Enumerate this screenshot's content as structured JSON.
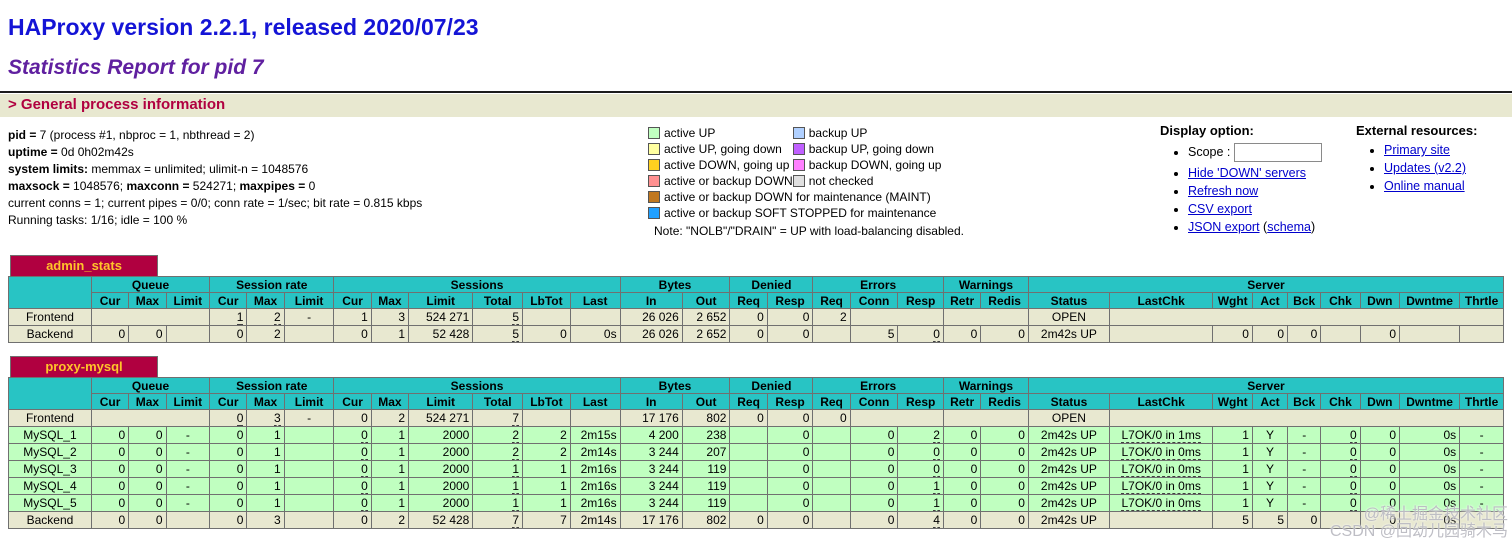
{
  "header": {
    "title": "HAProxy version 2.2.1, released 2020/07/23",
    "subtitle": "Statistics Report for pid 7",
    "section": "> General process information"
  },
  "process_info": [
    [
      {
        "b": true,
        "t": "pid = "
      },
      {
        "t": "7 (process #1, nbproc = 1, nbthread = 2)"
      }
    ],
    [
      {
        "b": true,
        "t": "uptime = "
      },
      {
        "t": "0d 0h02m42s"
      }
    ],
    [
      {
        "b": true,
        "t": "system limits:"
      },
      {
        "t": " memmax = unlimited; ulimit-n = 1048576"
      }
    ],
    [
      {
        "b": true,
        "t": "maxsock = "
      },
      {
        "t": "1048576; "
      },
      {
        "b": true,
        "t": "maxconn = "
      },
      {
        "t": "524271; "
      },
      {
        "b": true,
        "t": "maxpipes = "
      },
      {
        "t": "0"
      }
    ],
    [
      {
        "t": "current conns = 1; current pipes = 0/0; conn rate = 1/sec; bit rate = 0.815 kbps"
      }
    ],
    [
      {
        "t": "Running tasks: 1/16; idle = 100 %"
      }
    ]
  ],
  "legend": {
    "left": [
      {
        "label": "active UP",
        "color": "#c0ffc0"
      },
      {
        "label": "active UP, going down",
        "color": "#ffffa0"
      },
      {
        "label": "active DOWN, going up",
        "color": "#ffd020"
      },
      {
        "label": "active or backup DOWN",
        "color": "#ff9090"
      }
    ],
    "right": [
      {
        "label": "backup UP",
        "color": "#b0d0ff"
      },
      {
        "label": "backup UP, going down",
        "color": "#c060ff"
      },
      {
        "label": "backup DOWN, going up",
        "color": "#ff80ff"
      },
      {
        "label": "not checked",
        "color": "#e0e0e0"
      }
    ],
    "full": [
      {
        "label": "active or backup DOWN for maintenance (MAINT)",
        "color": "#c07820"
      },
      {
        "label": "active or backup SOFT STOPPED for maintenance",
        "color": "#20a0ff"
      }
    ],
    "note": "Note: \"NOLB\"/\"DRAIN\" = UP with load-balancing disabled."
  },
  "display_options": {
    "heading": "Display option:",
    "scope_label": "Scope :",
    "scope_value": "",
    "items": [
      {
        "parts": [
          {
            "t": "Hide 'DOWN' servers",
            "link": true
          }
        ]
      },
      {
        "parts": [
          {
            "t": "Refresh now",
            "link": true
          }
        ]
      },
      {
        "parts": [
          {
            "t": "CSV export",
            "link": true
          }
        ]
      },
      {
        "parts": [
          {
            "t": "JSON export",
            "link": true
          },
          {
            "t": " (",
            "link": false
          },
          {
            "t": "schema",
            "link": true
          },
          {
            "t": ")",
            "link": false
          }
        ]
      }
    ]
  },
  "external_resources": {
    "heading": "External resources:",
    "links": [
      "Primary site",
      "Updates (v2.2)",
      "Online manual"
    ]
  },
  "table_structure": {
    "widths": [
      80,
      36,
      36,
      42,
      36,
      36,
      48,
      36,
      36,
      62,
      48,
      46,
      48,
      60,
      46,
      36,
      44,
      36,
      46,
      44,
      36,
      46,
      78,
      100,
      38,
      34,
      32,
      38,
      38,
      58,
      42
    ],
    "groups": [
      {
        "label": "Queue",
        "cols": 3
      },
      {
        "label": "Session rate",
        "cols": 3
      },
      {
        "label": "Sessions",
        "cols": 6
      },
      {
        "label": "Bytes",
        "cols": 2
      },
      {
        "label": "Denied",
        "cols": 2
      },
      {
        "label": "Errors",
        "cols": 3
      },
      {
        "label": "Warnings",
        "cols": 2
      },
      {
        "label": "Server",
        "cols": 9
      }
    ],
    "columns": [
      "Cur",
      "Max",
      "Limit",
      "Cur",
      "Max",
      "Limit",
      "Cur",
      "Max",
      "Limit",
      "Total",
      "LbTot",
      "Last",
      "In",
      "Out",
      "Req",
      "Resp",
      "Req",
      "Conn",
      "Resp",
      "Retr",
      "Redis",
      "Status",
      "LastChk",
      "Wght",
      "Act",
      "Bck",
      "Chk",
      "Dwn",
      "Dwntme",
      "Thrtle"
    ]
  },
  "stats_tables": [
    {
      "title": "admin_stats",
      "rows": [
        {
          "name": "Frontend",
          "type": "frontend",
          "cells": [
            {
              "s": 3
            },
            {
              "v": "1",
              "u": 1
            },
            {
              "v": "2",
              "u": 1
            },
            {
              "v": "-",
              "a": "c"
            },
            "1",
            "3",
            "524 271",
            {
              "v": "5",
              "u": 1
            },
            "",
            "",
            "26 026",
            "2 652",
            "0",
            "0",
            "2",
            {
              "s": 2
            },
            {
              "s": 2
            },
            {
              "v": "OPEN",
              "a": "c"
            },
            {
              "s": 8
            }
          ]
        },
        {
          "name": "Backend",
          "type": "backend",
          "cells": [
            "0",
            "0",
            "",
            "0",
            "2",
            "",
            "0",
            "1",
            "52 428",
            {
              "v": "5",
              "u": 1
            },
            "0",
            "0s",
            "26 026",
            "2 652",
            "0",
            "0",
            "",
            "5",
            {
              "v": "0",
              "u": 1
            },
            "0",
            "0",
            {
              "v": "2m42s UP",
              "a": "c"
            },
            "",
            "0",
            "0",
            "0",
            "",
            "0",
            "",
            ""
          ]
        }
      ]
    },
    {
      "title": "proxy-mysql",
      "rows": [
        {
          "name": "Frontend",
          "type": "frontend",
          "cells": [
            {
              "s": 3
            },
            {
              "v": "0",
              "u": 1
            },
            {
              "v": "3",
              "u": 1
            },
            {
              "v": "-",
              "a": "c"
            },
            "0",
            "2",
            "524 271",
            {
              "v": "7",
              "u": 1
            },
            "",
            "",
            "17 176",
            "802",
            "0",
            "0",
            "0",
            {
              "s": 2
            },
            {
              "s": 2
            },
            {
              "v": "OPEN",
              "a": "c"
            },
            {
              "s": 8
            }
          ]
        },
        {
          "name": "MySQL_1",
          "type": "server-up",
          "cells": [
            "0",
            "0",
            {
              "v": "-",
              "a": "c"
            },
            "0",
            "1",
            "",
            {
              "v": "0",
              "u": 1
            },
            "1",
            "2000",
            {
              "v": "2",
              "u": 1
            },
            "2",
            "2m15s",
            "4 200",
            "238",
            "",
            "0",
            "",
            "0",
            {
              "v": "2",
              "u": 1
            },
            "0",
            "0",
            {
              "v": "2m42s UP",
              "a": "c"
            },
            {
              "v": "L7OK/0 in 1ms",
              "a": "c",
              "u": 1
            },
            "1",
            {
              "v": "Y",
              "a": "c"
            },
            {
              "v": "-",
              "a": "c"
            },
            {
              "v": "0",
              "u": 1
            },
            "0",
            "0s",
            {
              "v": "-",
              "a": "c"
            }
          ]
        },
        {
          "name": "MySQL_2",
          "type": "server-up",
          "cells": [
            "0",
            "0",
            {
              "v": "-",
              "a": "c"
            },
            "0",
            "1",
            "",
            {
              "v": "0",
              "u": 1
            },
            "1",
            "2000",
            {
              "v": "2",
              "u": 1
            },
            "2",
            "2m14s",
            "3 244",
            "207",
            "",
            "0",
            "",
            "0",
            {
              "v": "0",
              "u": 1
            },
            "0",
            "0",
            {
              "v": "2m42s UP",
              "a": "c"
            },
            {
              "v": "L7OK/0 in 0ms",
              "a": "c",
              "u": 1
            },
            "1",
            {
              "v": "Y",
              "a": "c"
            },
            {
              "v": "-",
              "a": "c"
            },
            {
              "v": "0",
              "u": 1
            },
            "0",
            "0s",
            {
              "v": "-",
              "a": "c"
            }
          ]
        },
        {
          "name": "MySQL_3",
          "type": "server-up",
          "cells": [
            "0",
            "0",
            {
              "v": "-",
              "a": "c"
            },
            "0",
            "1",
            "",
            {
              "v": "0",
              "u": 1
            },
            "1",
            "2000",
            {
              "v": "1",
              "u": 1
            },
            "1",
            "2m16s",
            "3 244",
            "119",
            "",
            "0",
            "",
            "0",
            {
              "v": "0",
              "u": 1
            },
            "0",
            "0",
            {
              "v": "2m42s UP",
              "a": "c"
            },
            {
              "v": "L7OK/0 in 0ms",
              "a": "c",
              "u": 1
            },
            "1",
            {
              "v": "Y",
              "a": "c"
            },
            {
              "v": "-",
              "a": "c"
            },
            {
              "v": "0",
              "u": 1
            },
            "0",
            "0s",
            {
              "v": "-",
              "a": "c"
            }
          ]
        },
        {
          "name": "MySQL_4",
          "type": "server-up",
          "cells": [
            "0",
            "0",
            {
              "v": "-",
              "a": "c"
            },
            "0",
            "1",
            "",
            {
              "v": "0",
              "u": 1
            },
            "1",
            "2000",
            {
              "v": "1",
              "u": 1
            },
            "1",
            "2m16s",
            "3 244",
            "119",
            "",
            "0",
            "",
            "0",
            {
              "v": "1",
              "u": 1
            },
            "0",
            "0",
            {
              "v": "2m42s UP",
              "a": "c"
            },
            {
              "v": "L7OK/0 in 0ms",
              "a": "c",
              "u": 1
            },
            "1",
            {
              "v": "Y",
              "a": "c"
            },
            {
              "v": "-",
              "a": "c"
            },
            {
              "v": "0",
              "u": 1
            },
            "0",
            "0s",
            {
              "v": "-",
              "a": "c"
            }
          ]
        },
        {
          "name": "MySQL_5",
          "type": "server-up",
          "cells": [
            "0",
            "0",
            {
              "v": "-",
              "a": "c"
            },
            "0",
            "1",
            "",
            {
              "v": "0",
              "u": 1
            },
            "1",
            "2000",
            {
              "v": "1",
              "u": 1
            },
            "1",
            "2m16s",
            "3 244",
            "119",
            "",
            "0",
            "",
            "0",
            {
              "v": "1",
              "u": 1
            },
            "0",
            "0",
            {
              "v": "2m42s UP",
              "a": "c"
            },
            {
              "v": "L7OK/0 in 0ms",
              "a": "c",
              "u": 1
            },
            "1",
            {
              "v": "Y",
              "a": "c"
            },
            {
              "v": "-",
              "a": "c"
            },
            {
              "v": "0",
              "u": 1
            },
            "0",
            "0s",
            {
              "v": "-",
              "a": "c"
            }
          ]
        },
        {
          "name": "Backend",
          "type": "backend",
          "cells": [
            "0",
            "0",
            "",
            "0",
            "3",
            "",
            "0",
            "2",
            "52 428",
            {
              "v": "7",
              "u": 1
            },
            "7",
            "2m14s",
            "17 176",
            "802",
            "0",
            "0",
            "",
            "0",
            {
              "v": "4",
              "u": 1
            },
            "0",
            "0",
            {
              "v": "2m42s UP",
              "a": "c"
            },
            "",
            "5",
            "5",
            "0",
            "",
            "0",
            "0s",
            ""
          ]
        }
      ]
    }
  ],
  "watermark": {
    "line1": "@稀土掘金技术社区",
    "line2": "CSDN @回幼儿园骑木马"
  }
}
